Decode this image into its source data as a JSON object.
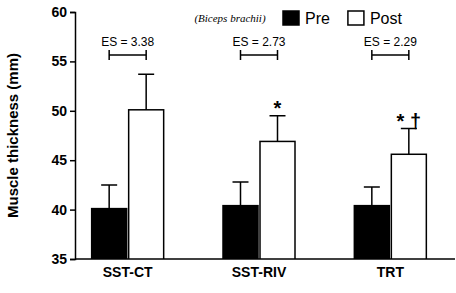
{
  "chart_data": {
    "type": "bar",
    "subtitle": "(Biceps brachii)",
    "y_label": "Muscle thickness (mm)",
    "categories": [
      "SST-CT",
      "SST-RIV",
      "TRT"
    ],
    "series": [
      {
        "name": "Pre",
        "color": "#000000",
        "values": [
          40.1,
          40.4,
          40.4
        ],
        "errors": [
          2.4,
          2.4,
          1.9
        ]
      },
      {
        "name": "Post",
        "color": "#ffffff",
        "values": [
          50.1,
          46.9,
          45.6
        ],
        "errors": [
          3.6,
          2.6,
          2.6
        ]
      }
    ],
    "ylim": [
      35,
      60
    ],
    "yticks": [
      35,
      40,
      45,
      50,
      55,
      60
    ],
    "legend": "top-right",
    "annotations": [
      {
        "text": "ES = 3.38",
        "category": 0
      },
      {
        "text": "ES = 2.73",
        "category": 1
      },
      {
        "text": "ES = 2.29",
        "category": 2
      },
      {
        "text": "*",
        "category": 1,
        "series": 1
      },
      {
        "text": "* †",
        "category": 2,
        "series": 1
      }
    ]
  }
}
